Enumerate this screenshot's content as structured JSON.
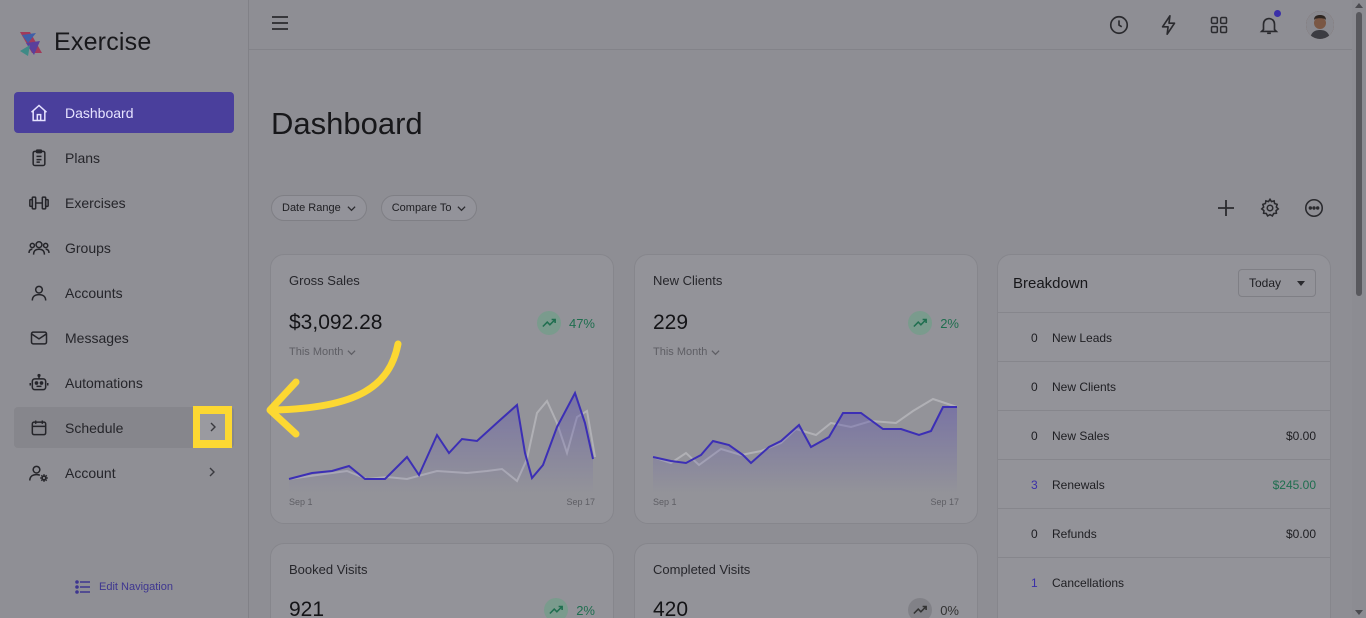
{
  "app": {
    "name": "Exercise"
  },
  "sidebar": {
    "items": [
      {
        "label": "Dashboard",
        "icon": "home-icon",
        "active": true
      },
      {
        "label": "Plans",
        "icon": "clipboard-icon"
      },
      {
        "label": "Exercises",
        "icon": "dumbbell-icon"
      },
      {
        "label": "Groups",
        "icon": "users-icon"
      },
      {
        "label": "Accounts",
        "icon": "user-icon"
      },
      {
        "label": "Messages",
        "icon": "mail-icon"
      },
      {
        "label": "Automations",
        "icon": "robot-icon"
      },
      {
        "label": "Schedule",
        "icon": "calendar-icon",
        "expandable": true
      },
      {
        "label": "Account",
        "icon": "user-gear-icon",
        "expandable": true
      }
    ],
    "edit_navigation": "Edit Navigation"
  },
  "topbar": {
    "icons": [
      "history-icon",
      "lightning-icon",
      "grid-icon",
      "bell-icon"
    ],
    "notification_dot_color": "#3a2fa8"
  },
  "page": {
    "title": "Dashboard",
    "filters": [
      {
        "label": "Date Range"
      },
      {
        "label": "Compare To"
      }
    ],
    "actions": [
      "plus-icon",
      "gear-icon",
      "more-icon"
    ]
  },
  "cards": {
    "gross_sales": {
      "title": "Gross Sales",
      "value": "$3,092.28",
      "trend": "47%",
      "period": "This Month",
      "x_start": "Sep 1",
      "x_end": "Sep 17"
    },
    "new_clients": {
      "title": "New Clients",
      "value": "229",
      "trend": "2%",
      "period": "This Month",
      "x_start": "Sep 1",
      "x_end": "Sep 17"
    },
    "booked_visits": {
      "title": "Booked Visits",
      "value": "921",
      "trend": "2%"
    },
    "completed_visits": {
      "title": "Completed Visits",
      "value": "420",
      "trend": "0%"
    }
  },
  "breakdown": {
    "title": "Breakdown",
    "period": "Today",
    "rows": [
      {
        "count": "0",
        "label": "New Leads",
        "amount": ""
      },
      {
        "count": "0",
        "label": "New Clients",
        "amount": ""
      },
      {
        "count": "0",
        "label": "New Sales",
        "amount": "$0.00"
      },
      {
        "count": "3",
        "label": "Renewals",
        "amount": "$245.00"
      },
      {
        "count": "0",
        "label": "Refunds",
        "amount": "$0.00"
      },
      {
        "count": "1",
        "label": "Cancellations",
        "amount": ""
      }
    ]
  },
  "colors": {
    "accent": "#4a3f9c",
    "highlight": "#fcd832",
    "positive": "#1f6e4f"
  }
}
